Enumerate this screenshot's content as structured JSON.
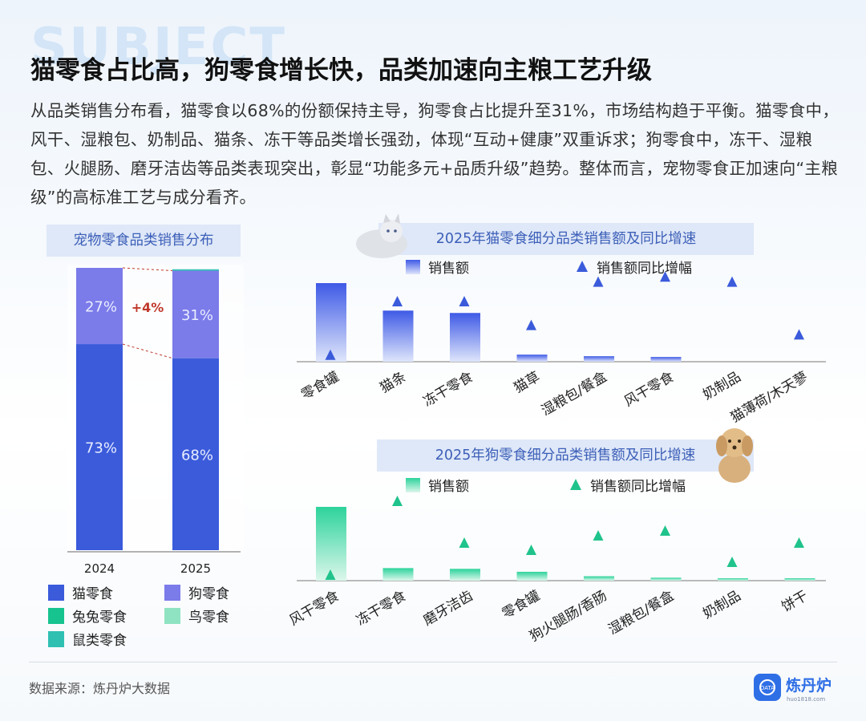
{
  "watermark": "SUBJECT",
  "title": "猫零食占比高，狗零食增长快，品类加速向主粮工艺升级",
  "description": "从品类销售分布看，猫零食以68%的份额保持主导，狗零食占比提升至31%，市场结构趋于平衡。猫零食中，风干、湿粮包、奶制品、猫条、冻干等品类增长强劲，体现“互动+健康”双重诉求；狗零食中，冻干、湿粮包、火腿肠、磨牙洁齿等品类表现突出，彰显“功能多元+品质升级”趋势。整体而言，宠物零食正加速向“主粮级”的高标准工艺与成分看齐。",
  "footer": "数据来源：炼丹炉大数据",
  "brand": {
    "name": "炼丹炉",
    "url": "huo1818.com",
    "badge": "DATA"
  },
  "colors": {
    "cat": "#3b5bdb",
    "dog": "#7b7bea",
    "rabbit": "#17c38f",
    "bird": "#8fe3c2",
    "rodent": "#2fc0b2",
    "catBar": "#4a63e6",
    "dogBar": "#2ecf9a"
  },
  "chart_data": [
    {
      "type": "bar",
      "stacked": true,
      "title": "宠物零食品类销售分布",
      "categories": [
        "2024",
        "2025"
      ],
      "series": [
        {
          "name": "猫零食",
          "values": [
            73,
            68
          ],
          "labels": [
            "73%",
            "68%"
          ]
        },
        {
          "name": "狗零食",
          "values": [
            27,
            31
          ],
          "labels": [
            "27%",
            "31%"
          ]
        },
        {
          "name": "兔兔零食",
          "values": [
            0,
            0
          ]
        },
        {
          "name": "鸟零食",
          "values": [
            0,
            0
          ]
        },
        {
          "name": "鼠类零食",
          "values": [
            0,
            0.5
          ]
        }
      ],
      "annotation": "+4%",
      "ylim": [
        0,
        100
      ]
    },
    {
      "type": "bar",
      "title": "2025年猫零食细分品类销售额及同比增速",
      "categories": [
        "零食罐",
        "猫条",
        "冻干零食",
        "猫草",
        "湿粮包/餐盒",
        "风干零食",
        "奶制品",
        "猫薄荷/木天蓼"
      ],
      "series": [
        {
          "name": "销售额",
          "values": [
            100,
            65,
            62,
            9,
            7,
            6,
            0,
            0
          ]
        },
        {
          "name": "销售额同比增幅",
          "marker": "triangle",
          "values": [
            4,
            67,
            67,
            39,
            90,
            96,
            90,
            28
          ]
        }
      ]
    },
    {
      "type": "bar",
      "title": "2025年狗零食细分品类销售额及同比增速",
      "categories": [
        "风干零食",
        "冻干零食",
        "磨牙洁齿",
        "零食罐",
        "狗火腿肠/香肠",
        "湿粮包/餐盒",
        "奶制品",
        "饼干"
      ],
      "series": [
        {
          "name": "销售额",
          "values": [
            100,
            17,
            16,
            12,
            6,
            4,
            2,
            1
          ]
        },
        {
          "name": "销售额同比增幅",
          "marker": "triangle",
          "values": [
            3,
            95,
            43,
            34,
            52,
            58,
            19,
            43
          ]
        }
      ]
    }
  ]
}
